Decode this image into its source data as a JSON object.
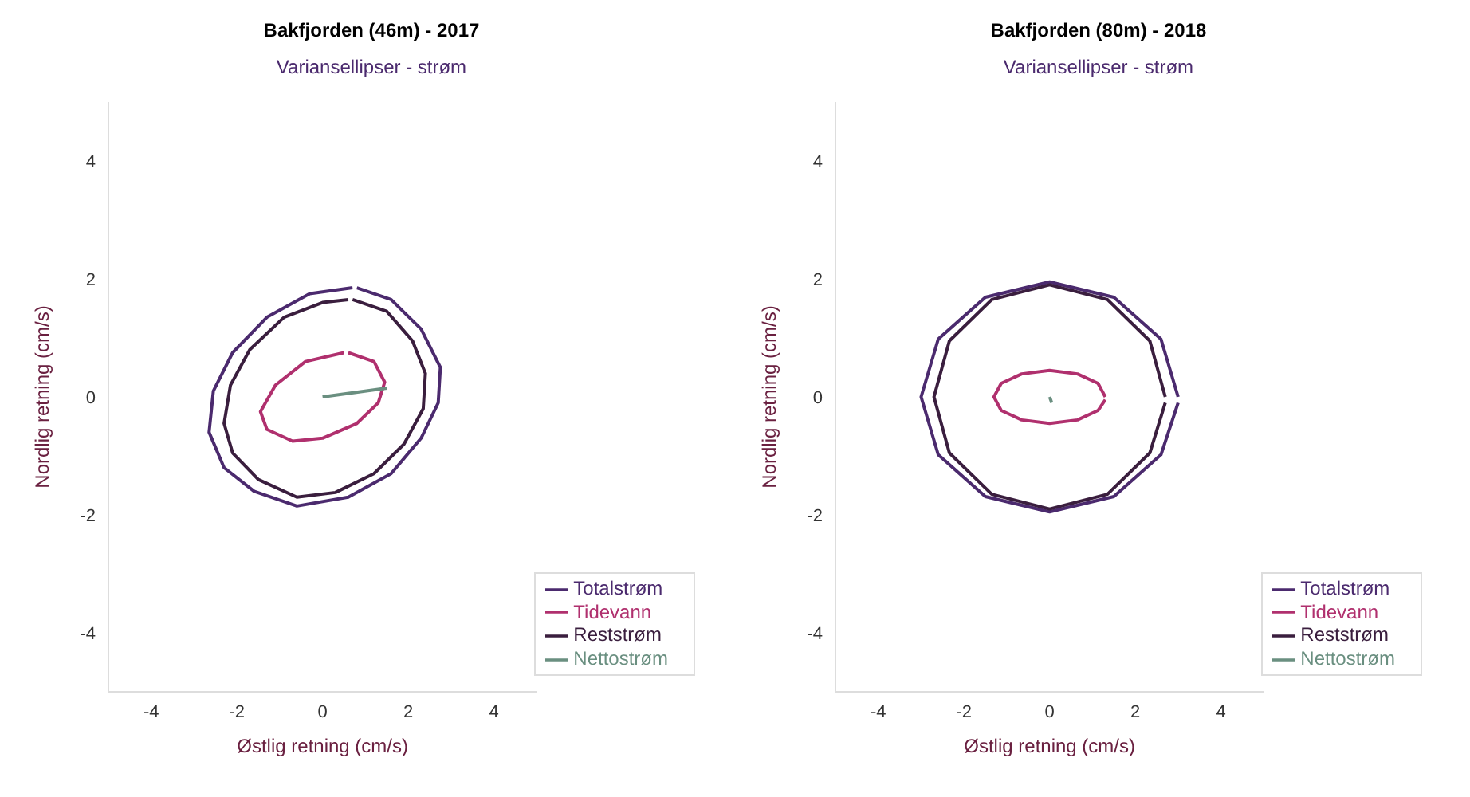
{
  "chart_data": [
    {
      "type": "line",
      "title": "Bakfjorden (46m) - 2017",
      "subtitle": "Variansellipser - strøm",
      "xlabel": "Østlig retning (cm/s)",
      "ylabel": "Nordlig retning (cm/s)",
      "xlim": [
        -5,
        5
      ],
      "ylim": [
        -5,
        5
      ],
      "xticks": [
        -4,
        -2,
        0,
        2,
        4
      ],
      "yticks": [
        -4,
        -2,
        0,
        2,
        4
      ],
      "grid": false,
      "legend": "bottom right",
      "marker": "none",
      "line_style": "solid",
      "series": [
        {
          "name": "Totalstrøm",
          "color": "#4b2a6e",
          "x": [
            0.8,
            1.6,
            2.3,
            2.75,
            2.7,
            2.3,
            1.6,
            0.6,
            -0.6,
            -1.6,
            -2.3,
            -2.65,
            -2.55,
            -2.1,
            -1.3,
            -0.3,
            0.7
          ],
          "values": [
            1.85,
            1.65,
            1.15,
            0.5,
            -0.1,
            -0.7,
            -1.3,
            -1.7,
            -1.85,
            -1.6,
            -1.2,
            -0.6,
            0.1,
            0.75,
            1.35,
            1.75,
            1.85
          ]
        },
        {
          "name": "Tidevann",
          "color": "#b0306e",
          "x": [
            0.6,
            1.2,
            1.45,
            1.3,
            0.8,
            0,
            -0.7,
            -1.3,
            -1.45,
            -1.1,
            -0.4,
            0.5
          ],
          "values": [
            0.75,
            0.6,
            0.25,
            -0.1,
            -0.45,
            -0.7,
            -0.75,
            -0.55,
            -0.25,
            0.2,
            0.6,
            0.75
          ]
        },
        {
          "name": "Reststrøm",
          "color": "#3a1e3e",
          "x": [
            0.7,
            1.5,
            2.1,
            2.4,
            2.35,
            1.9,
            1.2,
            0.3,
            -0.6,
            -1.5,
            -2.1,
            -2.3,
            -2.15,
            -1.7,
            -0.9,
            0,
            0.6
          ],
          "values": [
            1.65,
            1.45,
            0.95,
            0.4,
            -0.2,
            -0.8,
            -1.3,
            -1.62,
            -1.7,
            -1.4,
            -0.95,
            -0.45,
            0.2,
            0.8,
            1.35,
            1.6,
            1.65
          ]
        },
        {
          "name": "Nettostrøm",
          "color": "#6a8f80",
          "x": [
            0,
            1.5
          ],
          "values": [
            0,
            0.15
          ]
        }
      ]
    },
    {
      "type": "line",
      "title": "Bakfjorden (80m) - 2018",
      "subtitle": "Variansellipser - strøm",
      "xlabel": "Østlig retning (cm/s)",
      "ylabel": "Nordlig retning (cm/s)",
      "xlim": [
        -5,
        5
      ],
      "ylim": [
        -5,
        5
      ],
      "xticks": [
        -4,
        -2,
        0,
        2,
        4
      ],
      "yticks": [
        -4,
        -2,
        0,
        2,
        4
      ],
      "grid": false,
      "legend": "bottom right",
      "marker": "none",
      "line_style": "solid",
      "series": [
        {
          "name": "Totalstrøm",
          "color": "#4b2a6e",
          "x": [
            3,
            2.6,
            1.5,
            0,
            -1.5,
            -2.6,
            -3,
            -2.6,
            -1.5,
            0,
            1.5,
            2.6,
            3
          ],
          "values": [
            0,
            0.98,
            1.69,
            1.95,
            1.69,
            0.98,
            0,
            -0.98,
            -1.69,
            -1.95,
            -1.69,
            -0.98,
            -0.1
          ]
        },
        {
          "name": "Tidevann",
          "color": "#b0306e",
          "x": [
            1.3,
            1.13,
            0.65,
            0,
            -0.65,
            -1.13,
            -1.3,
            -1.13,
            -0.65,
            0,
            0.65,
            1.13,
            1.3
          ],
          "values": [
            0,
            0.23,
            0.39,
            0.45,
            0.39,
            0.23,
            0,
            -0.23,
            -0.39,
            -0.45,
            -0.39,
            -0.23,
            -0.05
          ]
        },
        {
          "name": "Reststrøm",
          "color": "#3a1e3e",
          "x": [
            2.7,
            2.34,
            1.35,
            0,
            -1.35,
            -2.34,
            -2.7,
            -2.34,
            -1.35,
            0,
            1.35,
            2.34,
            2.7
          ],
          "values": [
            0,
            0.95,
            1.65,
            1.9,
            1.65,
            0.95,
            0,
            -0.95,
            -1.65,
            -1.9,
            -1.65,
            -0.95,
            -0.1
          ]
        },
        {
          "name": "Nettostrøm",
          "color": "#6a8f80",
          "x": [
            0,
            0.05
          ],
          "values": [
            0,
            -0.1
          ]
        }
      ]
    }
  ]
}
